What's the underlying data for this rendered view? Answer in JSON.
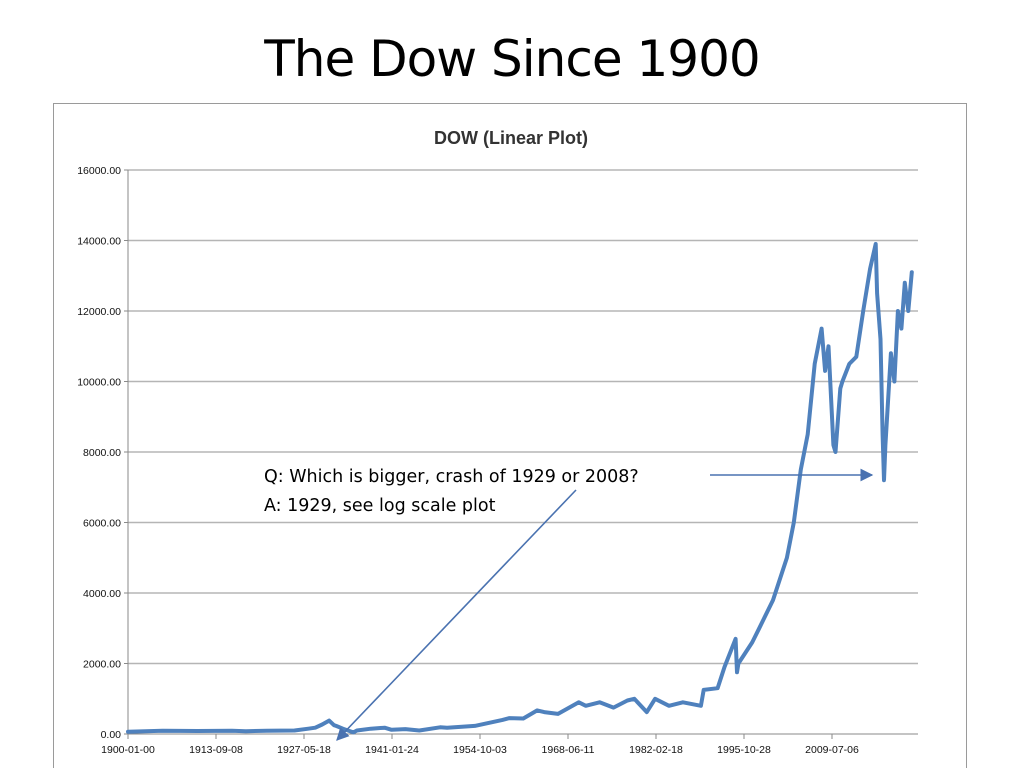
{
  "slide": {
    "title": "The Dow Since 1900"
  },
  "chart_data": {
    "type": "line",
    "title": "DOW (Linear Plot)",
    "xlabel": "",
    "ylabel": "",
    "ylim": [
      0,
      16000
    ],
    "y_ticks": [
      "0.00",
      "2000.00",
      "4000.00",
      "6000.00",
      "8000.00",
      "10000.00",
      "12000.00",
      "14000.00",
      "16000.00"
    ],
    "x_ticks": [
      "1900-01-00",
      "1913-09-08",
      "1927-05-18",
      "1941-01-24",
      "1954-10-03",
      "1968-06-11",
      "1982-02-18",
      "1995-10-28",
      "2009-07-06"
    ],
    "grid": "horizontal",
    "legend": "none",
    "series_color": "#4f81bd",
    "series": [
      {
        "x": [
          1900,
          1905,
          1910,
          1915,
          1917,
          1920,
          1924,
          1926,
          1927,
          1928,
          1929.0,
          1929.7,
          1930,
          1931,
          1932.5,
          1933,
          1935,
          1937,
          1938,
          1940,
          1942,
          1945,
          1946,
          1950,
          1954,
          1955,
          1957,
          1959,
          1960,
          1962,
          1965,
          1966,
          1968,
          1970,
          1972,
          1973,
          1974.8,
          1976,
          1978,
          1980,
          1982.6,
          1983,
          1985,
          1986,
          1987.6,
          1987.8,
          1988,
          1990,
          1991,
          1993,
          1995,
          1996,
          1997,
          1998,
          1999,
          2000.0,
          2000.5,
          2001,
          2001.7,
          2002,
          2002.7,
          2003,
          2004,
          2005,
          2006,
          2007.0,
          2007.8,
          2008.0,
          2008.5,
          2008.8,
          2009.0,
          2009.2,
          2010,
          2010.5,
          2011,
          2011.5,
          2012,
          2012.5,
          2013
        ],
        "y": [
          65,
          90,
          85,
          90,
          80,
          95,
          100,
          150,
          180,
          270,
          380,
          250,
          230,
          150,
          45,
          100,
          150,
          180,
          120,
          140,
          100,
          190,
          180,
          230,
          400,
          450,
          440,
          670,
          620,
          570,
          900,
          800,
          900,
          750,
          950,
          1000,
          620,
          1000,
          800,
          900,
          800,
          1250,
          1300,
          1900,
          2700,
          1750,
          2000,
          2600,
          3000,
          3800,
          5000,
          6000,
          7500,
          8500,
          10500,
          11500,
          10300,
          11000,
          8200,
          8000,
          9800,
          10000,
          10500,
          10700,
          12000,
          13200,
          13900,
          12500,
          11200,
          8500,
          7200,
          8200,
          10800,
          10000,
          12000,
          11500,
          12800,
          12000,
          13100
        ]
      }
    ],
    "annotations": [
      "Q: Which is bigger, crash of 1929 or 2008?",
      "A: 1929, see log scale plot"
    ]
  }
}
